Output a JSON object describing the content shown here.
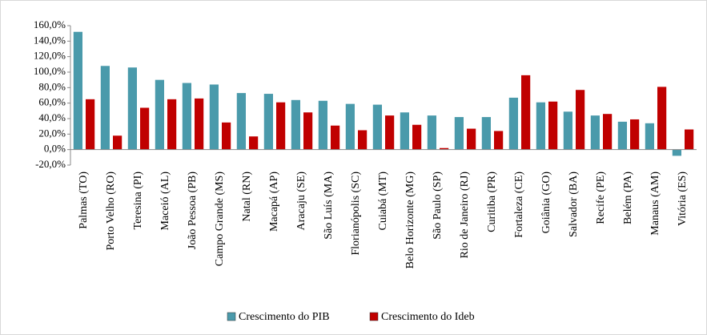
{
  "chart_data": {
    "type": "bar",
    "categories": [
      "Palmas (TO)",
      "Porto Velho (RO)",
      "Teresina (PI)",
      "Maceió (AL)",
      "João Pessoa (PB)",
      "Campo Grande (MS)",
      "Natal (RN)",
      "Macapá (AP)",
      "Aracaju (SE)",
      "São Luís (MA)",
      "Florianópolis (SC)",
      "Cuiabá (MT)",
      "Belo Horizonte (MG)",
      "São Paulo (SP)",
      "Rio de Janeiro (RJ)",
      "Curitiba (PR)",
      "Fortaleza (CE)",
      "Goiânia (GO)",
      "Salvador (BA)",
      "Recife (PE)",
      "Belém (PA)",
      "Manaus (AM)",
      "Vitória (ES)"
    ],
    "series": [
      {
        "name": "Crescimento do PIB",
        "color": "#4a9aab",
        "values": [
          152,
          108,
          106,
          90,
          86,
          84,
          73,
          72,
          64,
          63,
          59,
          58,
          48,
          44,
          42,
          42,
          67,
          61,
          49,
          44,
          36,
          34,
          -8
        ]
      },
      {
        "name": "Crescimento do Ideb",
        "color": "#c00000",
        "values": [
          65,
          18,
          54,
          65,
          66,
          35,
          17,
          61,
          48,
          31,
          25,
          44,
          32,
          2,
          27,
          24,
          96,
          62,
          77,
          46,
          39,
          81,
          26
        ]
      }
    ],
    "ylim": [
      -20,
      160
    ],
    "yticks": [
      {
        "value": -20,
        "label": "-20,0%"
      },
      {
        "value": 0,
        "label": "0,0%"
      },
      {
        "value": 20,
        "label": "20,0%"
      },
      {
        "value": 40,
        "label": "40,0%"
      },
      {
        "value": 60,
        "label": "60,0%"
      },
      {
        "value": 80,
        "label": "80,0%"
      },
      {
        "value": 100,
        "label": "100,0%"
      },
      {
        "value": 120,
        "label": "120,0%"
      },
      {
        "value": 140,
        "label": "140,0%"
      },
      {
        "value": 160,
        "label": "160,0%"
      }
    ],
    "grid": false,
    "legend": "bottom"
  }
}
